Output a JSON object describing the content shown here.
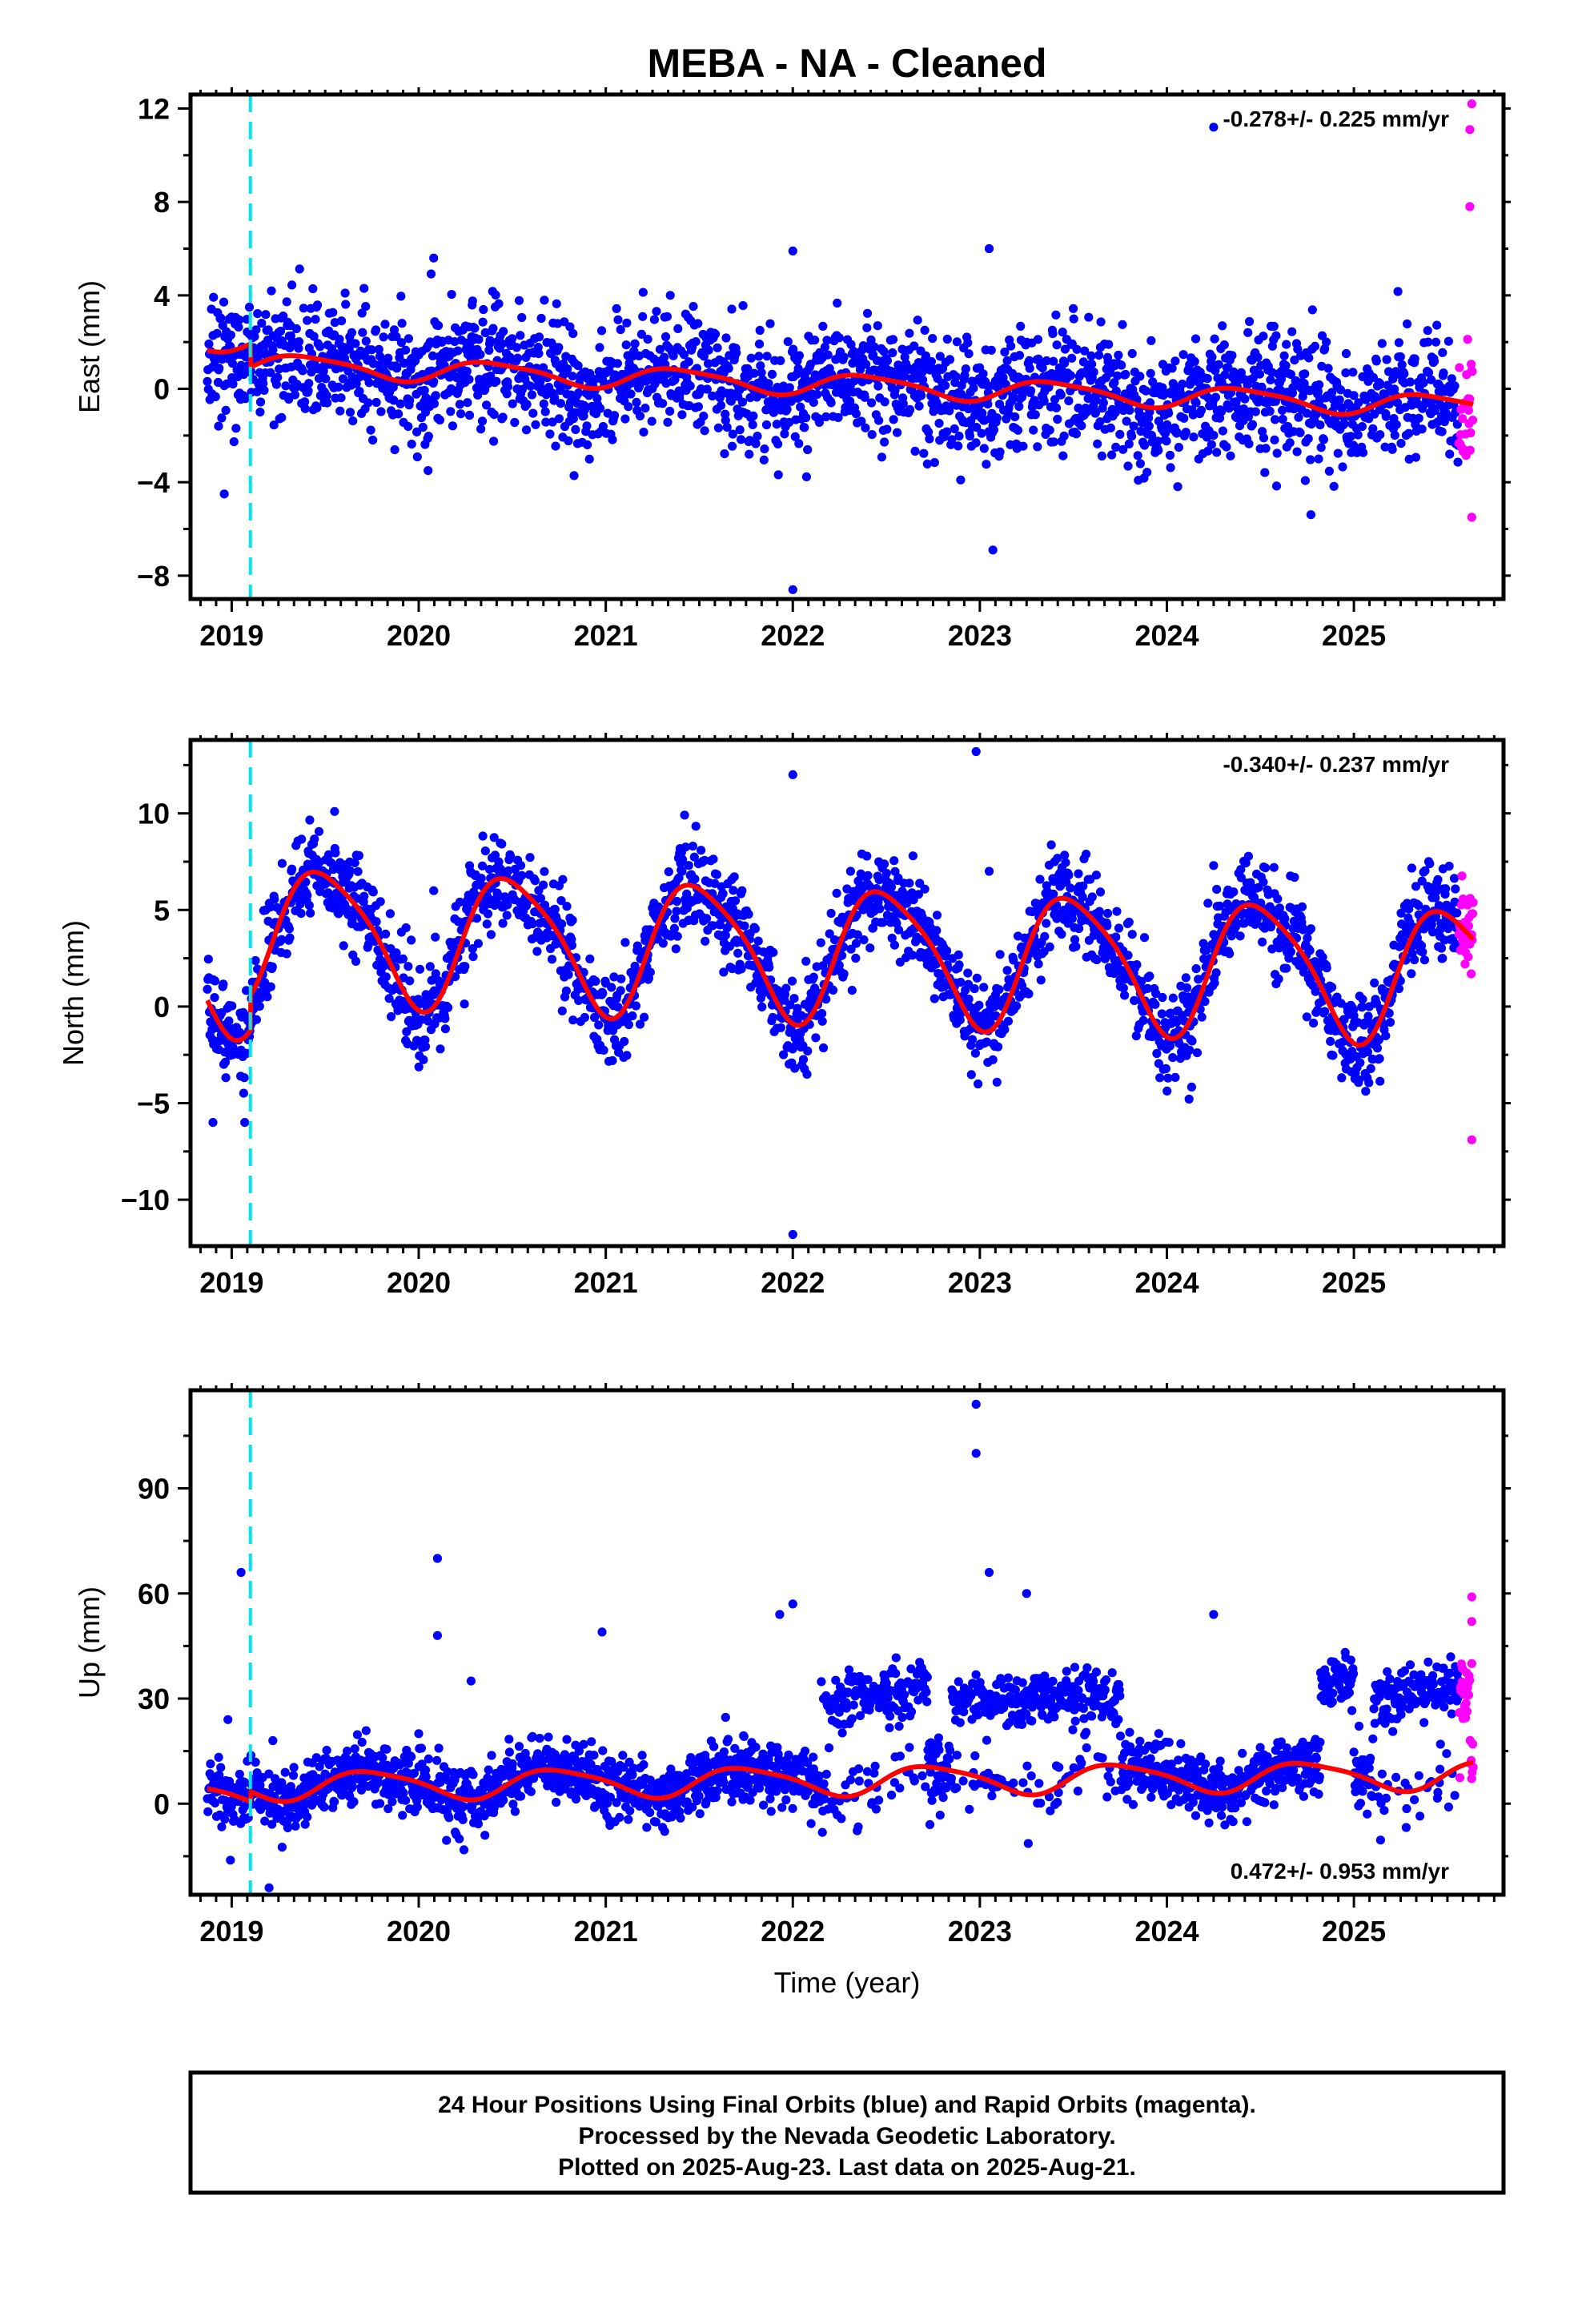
{
  "page": {
    "title": "MEBA  - NA - Cleaned",
    "footer_lines": [
      "24 Hour Positions Using Final Orbits (blue) and Rapid Orbits (magenta).",
      "Processed by the Nevada Geodetic Laboratory.",
      "Plotted on 2025-Aug-23. Last data on 2025-Aug-21."
    ]
  },
  "colors": {
    "final_orbits": "#0000ff",
    "rapid_orbits": "#ff00ff",
    "model": "#ff0000",
    "event_line": "#00e5ee",
    "axes": "#000000"
  },
  "chart_data": [
    {
      "type": "scatter",
      "ylabel": "East (mm)",
      "xlabel": "",
      "xlim": [
        2018.78,
        2025.8
      ],
      "ylim": [
        -9.0,
        12.6
      ],
      "xticks": [
        2019,
        2020,
        2021,
        2022,
        2023,
        2024,
        2025
      ],
      "yticks": [
        -8,
        -4,
        0,
        4,
        8,
        12
      ],
      "grid": false,
      "rate_text": "-0.278+/- 0.225 mm/yr",
      "rate_position": "top-right",
      "event_x": 2019.1,
      "model": {
        "offset": 1.25,
        "trend": -0.278,
        "step": -1.0,
        "annual_amp": 0.45,
        "annual_phase": 0.15,
        "semi_amp": 0.1
      },
      "noise_sd": 1.3,
      "final_end": 2025.56,
      "rapid_start": 2025.56,
      "data_end": 2025.64,
      "outliers": [
        [
          2018.93,
          -1.6
        ],
        [
          2018.96,
          -4.5
        ],
        [
          2020.08,
          5.6
        ],
        [
          2020.05,
          -3.5
        ],
        [
          2022.0,
          5.9
        ],
        [
          2022.0,
          -8.6
        ],
        [
          2023.05,
          6.0
        ],
        [
          2023.07,
          -6.9
        ],
        [
          2024.25,
          11.2
        ],
        [
          2025.63,
          12.2
        ],
        [
          2025.62,
          11.1
        ],
        [
          2025.62,
          7.8
        ],
        [
          2025.63,
          -5.5
        ]
      ]
    },
    {
      "type": "scatter",
      "ylabel": "North (mm)",
      "xlabel": "",
      "xlim": [
        2018.78,
        2025.8
      ],
      "ylim": [
        -12.4,
        13.8
      ],
      "xticks": [
        2019,
        2020,
        2021,
        2022,
        2023,
        2024,
        2025
      ],
      "yticks": [
        -10,
        -5,
        0,
        5,
        10
      ],
      "grid": false,
      "rate_text": "-0.340+/- 0.237 mm/yr",
      "rate_position": "top-right",
      "event_x": 2019.1,
      "model": {
        "offset": 1.1,
        "trend": -0.34,
        "step": 1.8,
        "annual_amp": 3.4,
        "annual_phase": 0.25,
        "semi_amp": 0.6
      },
      "noise_sd": 1.2,
      "final_end": 2025.56,
      "rapid_start": 2025.56,
      "data_end": 2025.64,
      "outliers": [
        [
          2018.9,
          -6.0
        ],
        [
          2019.07,
          -6.0
        ],
        [
          2019.55,
          10.1
        ],
        [
          2020.08,
          6.0
        ],
        [
          2022.0,
          12.0
        ],
        [
          2022.0,
          -11.8
        ],
        [
          2022.98,
          13.2
        ],
        [
          2023.05,
          7.0
        ],
        [
          2023.4,
          7.5
        ],
        [
          2024.25,
          7.3
        ],
        [
          2025.63,
          4.8
        ],
        [
          2025.63,
          -6.9
        ]
      ]
    },
    {
      "type": "scatter",
      "ylabel": "Up (mm)",
      "xlabel": "Time (year)",
      "xlim": [
        2018.78,
        2025.8
      ],
      "ylim": [
        -26.0,
        118.0
      ],
      "xticks": [
        2019,
        2020,
        2021,
        2022,
        2023,
        2024,
        2025
      ],
      "yticks": [
        0,
        30,
        60,
        90
      ],
      "grid": false,
      "rate_text": "0.472+/- 0.953 mm/yr",
      "rate_position": "bottom-right",
      "event_x": 2019.1,
      "model": {
        "offset": 3.5,
        "trend": 0.472,
        "step": 3.0,
        "annual_amp": 4.0,
        "annual_phase": 0.5,
        "semi_amp": 0.8
      },
      "noise_sd": 4.5,
      "final_end": 2025.56,
      "rapid_start": 2025.56,
      "data_end": 2025.64,
      "offset_segments": [
        {
          "start": 2022.15,
          "end": 2022.72,
          "level": 27,
          "slope": 14,
          "prob": 0.8
        },
        {
          "start": 2022.85,
          "end": 2023.75,
          "level": 30,
          "slope": 0,
          "prob": 0.8
        },
        {
          "start": 2024.82,
          "end": 2025.0,
          "level": 35,
          "slope": 0,
          "prob": 1.0
        },
        {
          "start": 2025.1,
          "end": 2025.62,
          "level": 30,
          "slope": 6,
          "prob": 0.85
        }
      ],
      "outliers": [
        [
          2019.05,
          66
        ],
        [
          2018.98,
          24
        ],
        [
          2019.22,
          18
        ],
        [
          2019.2,
          -24
        ],
        [
          2020.1,
          70
        ],
        [
          2020.1,
          48
        ],
        [
          2020.0,
          20
        ],
        [
          2020.28,
          35
        ],
        [
          2020.98,
          49
        ],
        [
          2021.93,
          54
        ],
        [
          2022.0,
          57
        ],
        [
          2022.98,
          114
        ],
        [
          2022.98,
          100
        ],
        [
          2023.05,
          66
        ],
        [
          2023.25,
          60
        ],
        [
          2024.25,
          54
        ],
        [
          2025.63,
          59
        ],
        [
          2025.63,
          52
        ],
        [
          2025.63,
          40
        ]
      ]
    }
  ]
}
